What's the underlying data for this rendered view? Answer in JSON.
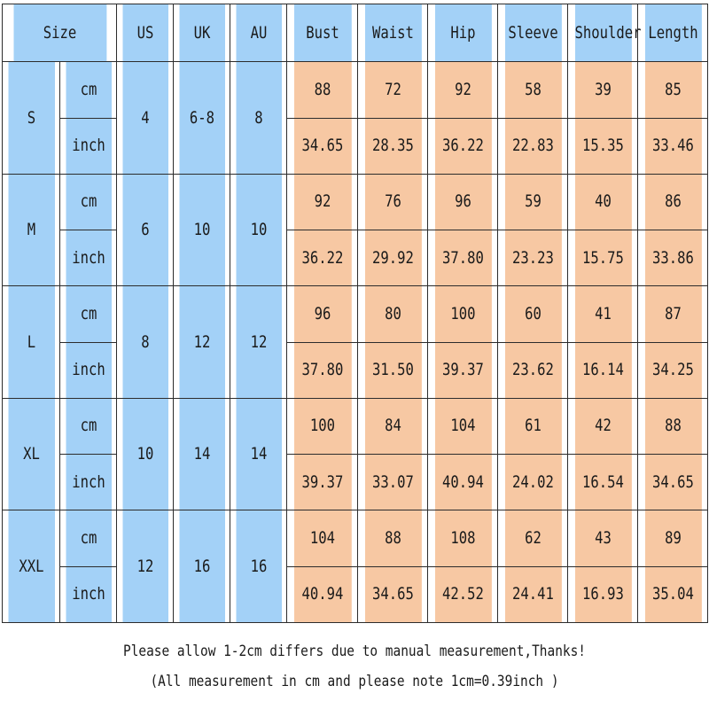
{
  "header": {
    "size": "Size",
    "us": "US",
    "uk": "UK",
    "au": "AU",
    "measures": [
      "Bust",
      "Waist",
      "Hip",
      "Sleeve",
      "Shoulder",
      "Length"
    ]
  },
  "rows": [
    {
      "size": "S",
      "us": "4",
      "uk": "6-8",
      "au": "8",
      "cm": [
        "88",
        "72",
        "92",
        "58",
        "39",
        "85"
      ],
      "inch": [
        "34.65",
        "28.35",
        "36.22",
        "22.83",
        "15.35",
        "33.46"
      ]
    },
    {
      "size": "M",
      "us": "6",
      "uk": "10",
      "au": "10",
      "cm": [
        "92",
        "76",
        "96",
        "59",
        "40",
        "86"
      ],
      "inch": [
        "36.22",
        "29.92",
        "37.80",
        "23.23",
        "15.75",
        "33.86"
      ]
    },
    {
      "size": "L",
      "us": "8",
      "uk": "12",
      "au": "12",
      "cm": [
        "96",
        "80",
        "100",
        "60",
        "41",
        "87"
      ],
      "inch": [
        "37.80",
        "31.50",
        "39.37",
        "23.62",
        "16.14",
        "34.25"
      ]
    },
    {
      "size": "XL",
      "us": "10",
      "uk": "14",
      "au": "14",
      "cm": [
        "100",
        "84",
        "104",
        "61",
        "42",
        "88"
      ],
      "inch": [
        "39.37",
        "33.07",
        "40.94",
        "24.02",
        "16.54",
        "34.65"
      ]
    },
    {
      "size": "XXL",
      "us": "12",
      "uk": "16",
      "au": "16",
      "cm": [
        "104",
        "88",
        "108",
        "62",
        "43",
        "89"
      ],
      "inch": [
        "40.94",
        "34.65",
        "42.52",
        "24.41",
        "16.93",
        "35.04"
      ]
    }
  ],
  "unit_cm": "cm",
  "unit_inch": "inch",
  "note_line1": "Please allow 1-2cm differs due to manual measurement,Thanks!",
  "note_line2": "(All measurement in cm and please note 1cm=0.39inch )",
  "colors": {
    "size_columns": "#a3d1f7",
    "measure_columns": "#f7c8a3",
    "border": "#2c2c2c"
  }
}
